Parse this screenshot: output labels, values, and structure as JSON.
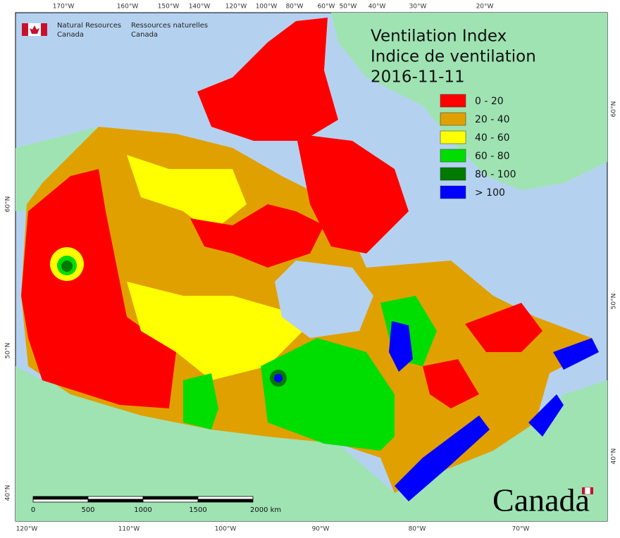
{
  "header": {
    "agency_en": [
      "Natural Resources",
      "Canada"
    ],
    "agency_fr": [
      "Ressources naturelles",
      "Canada"
    ]
  },
  "title": {
    "en": "Ventilation Index",
    "fr": "Indice de ventilation",
    "date": "2016-11-11"
  },
  "legend": [
    {
      "label": "0 - 20",
      "color": "#ff0000"
    },
    {
      "label": "20 - 40",
      "color": "#e0a000"
    },
    {
      "label": "40 - 60",
      "color": "#ffff00"
    },
    {
      "label": "60 - 80",
      "color": "#00dd00"
    },
    {
      "label": "80 - 100",
      "color": "#007a00"
    },
    {
      "label": "> 100",
      "color": "#0000ff"
    }
  ],
  "graticule": {
    "top": [
      "170°W",
      "160°W",
      "150°W",
      "140°W",
      "120°W",
      "100°W",
      "80°W",
      "60°W",
      "50°W",
      "40°W",
      "30°W",
      "20°W"
    ],
    "bottom": [
      "120°W",
      "110°W",
      "100°W",
      "90°W",
      "80°W",
      "70°W"
    ],
    "left": [
      "60°N",
      "50°N",
      "40°N"
    ],
    "right": [
      "60°N",
      "50°N",
      "40°N"
    ]
  },
  "scale_bar": {
    "labels": [
      "0",
      "500",
      "1000",
      "1500",
      "2000 km"
    ]
  },
  "wordmark": "Canada"
}
